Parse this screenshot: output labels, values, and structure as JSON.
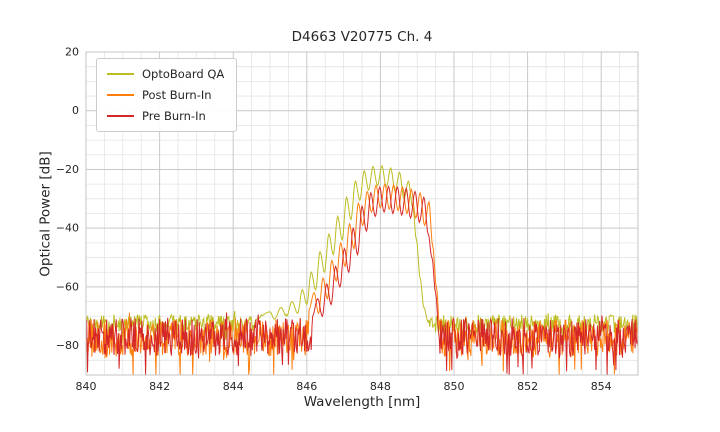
{
  "chart_data": {
    "type": "line",
    "title": "D4663 V20775 Ch. 4",
    "xlabel": "Wavelength [nm]",
    "ylabel": "Optical Power [dB]",
    "xlim": [
      840,
      855
    ],
    "ylim": [
      -90,
      20
    ],
    "x_ticks": [
      840,
      842,
      844,
      846,
      848,
      850,
      852,
      854
    ],
    "y_ticks": [
      20,
      0,
      -20,
      -40,
      -60,
      -80
    ],
    "x_minor_step": 0.5,
    "y_minor_step": 5,
    "grid": true,
    "background": "#ffffff",
    "grid_major_color": "#c9c9c9",
    "grid_minor_color": "#e4e4e4",
    "border_color": "#c4c4c4",
    "legend": {
      "position": "upper-left",
      "entries": [
        "OptoBoard QA",
        "Post Burn-In",
        "Pre Burn-In"
      ]
    },
    "series": [
      {
        "name": "OptoBoard QA",
        "color": "#bcbd22",
        "noise": {
          "mean": -72.5,
          "spread": 3.2
        },
        "envelope": [
          [
            844.6,
            -71
          ],
          [
            845.0,
            -68.5
          ],
          [
            845.12,
            -71
          ],
          [
            845.3,
            -67
          ],
          [
            845.45,
            -70
          ],
          [
            845.6,
            -65
          ],
          [
            845.75,
            -69
          ],
          [
            845.88,
            -61
          ],
          [
            846.0,
            -66
          ],
          [
            846.12,
            -55
          ],
          [
            846.24,
            -61
          ],
          [
            846.36,
            -48
          ],
          [
            846.48,
            -55
          ],
          [
            846.6,
            -42
          ],
          [
            846.72,
            -49
          ],
          [
            846.84,
            -36
          ],
          [
            846.96,
            -44
          ],
          [
            847.08,
            -29.5
          ],
          [
            847.2,
            -37
          ],
          [
            847.32,
            -24
          ],
          [
            847.44,
            -30.5
          ],
          [
            847.56,
            -20.5
          ],
          [
            847.68,
            -27
          ],
          [
            847.8,
            -19
          ],
          [
            847.92,
            -25.5
          ],
          [
            848.04,
            -18.8
          ],
          [
            848.16,
            -26
          ],
          [
            848.28,
            -19.5
          ],
          [
            848.4,
            -27.5
          ],
          [
            848.52,
            -21
          ],
          [
            848.64,
            -30
          ],
          [
            848.76,
            -24
          ],
          [
            848.88,
            -33
          ],
          [
            848.98,
            -44
          ],
          [
            849.08,
            -57
          ],
          [
            849.18,
            -67
          ],
          [
            849.3,
            -72
          ]
        ]
      },
      {
        "name": "Post Burn-In",
        "color": "#ff7f0e",
        "noise": {
          "mean": -77.5,
          "spread": 6.5
        },
        "envelope": [
          [
            846.05,
            -68
          ],
          [
            846.2,
            -62
          ],
          [
            846.32,
            -69
          ],
          [
            846.44,
            -57
          ],
          [
            846.56,
            -64
          ],
          [
            846.68,
            -51
          ],
          [
            846.8,
            -58
          ],
          [
            846.92,
            -45
          ],
          [
            847.04,
            -53
          ],
          [
            847.16,
            -38.5
          ],
          [
            847.28,
            -47
          ],
          [
            847.4,
            -31.5
          ],
          [
            847.52,
            -39
          ],
          [
            847.64,
            -27.5
          ],
          [
            847.76,
            -34.5
          ],
          [
            847.88,
            -25.5
          ],
          [
            848.0,
            -33
          ],
          [
            848.12,
            -25
          ],
          [
            848.24,
            -33.5
          ],
          [
            848.36,
            -25.3
          ],
          [
            848.48,
            -34
          ],
          [
            848.6,
            -26
          ],
          [
            848.72,
            -35
          ],
          [
            848.84,
            -26.8
          ],
          [
            848.96,
            -36.5
          ],
          [
            849.08,
            -28
          ],
          [
            849.2,
            -39
          ],
          [
            849.32,
            -31
          ],
          [
            849.42,
            -46
          ],
          [
            849.52,
            -60
          ],
          [
            849.62,
            -75
          ]
        ]
      },
      {
        "name": "Pre Burn-In",
        "color": "#d62728",
        "noise": {
          "mean": -77.0,
          "spread": 6.5
        },
        "envelope": [
          [
            846.15,
            -70
          ],
          [
            846.3,
            -64
          ],
          [
            846.42,
            -70
          ],
          [
            846.54,
            -59
          ],
          [
            846.66,
            -66
          ],
          [
            846.78,
            -53
          ],
          [
            846.9,
            -60
          ],
          [
            847.02,
            -47
          ],
          [
            847.14,
            -55
          ],
          [
            847.26,
            -40
          ],
          [
            847.38,
            -49
          ],
          [
            847.5,
            -32.5
          ],
          [
            847.62,
            -41
          ],
          [
            847.74,
            -28
          ],
          [
            847.86,
            -36
          ],
          [
            847.98,
            -26
          ],
          [
            848.1,
            -34.5
          ],
          [
            848.22,
            -25.8
          ],
          [
            848.34,
            -35
          ],
          [
            848.46,
            -26
          ],
          [
            848.58,
            -35.5
          ],
          [
            848.7,
            -26.5
          ],
          [
            848.82,
            -36.5
          ],
          [
            848.94,
            -27.5
          ],
          [
            849.06,
            -38
          ],
          [
            849.18,
            -29.5
          ],
          [
            849.3,
            -42
          ],
          [
            849.4,
            -50
          ],
          [
            849.5,
            -62
          ],
          [
            849.6,
            -78
          ]
        ]
      }
    ]
  }
}
